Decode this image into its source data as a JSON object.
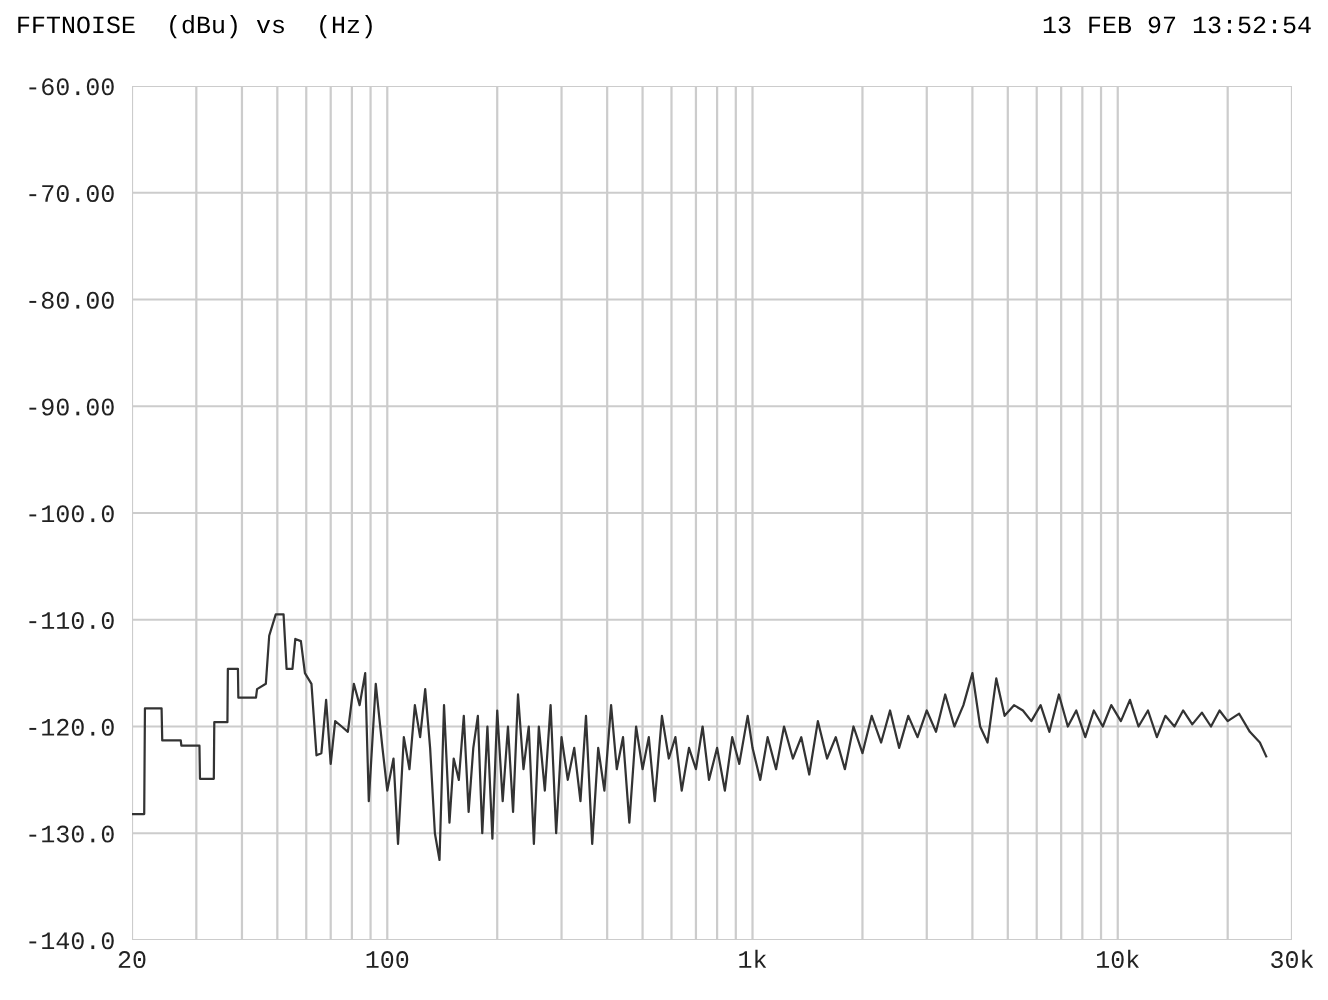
{
  "chart_data": {
    "type": "line",
    "title": "FFTNOISE  (dBu) vs  (Hz)",
    "annotations": [
      "13 FEB 97 13:52:54"
    ],
    "log": "x",
    "grid": true,
    "marker": "none",
    "line_style": "solid",
    "legend": false,
    "xlim": [
      20,
      30000
    ],
    "ylim": [
      -140,
      -60
    ],
    "xticks": [
      20,
      {
        "value": 30,
        "label": null
      },
      {
        "value": 40,
        "label": null
      },
      {
        "value": 50,
        "label": null
      },
      {
        "value": 60,
        "label": null
      },
      {
        "value": 70,
        "label": null
      },
      {
        "value": 80,
        "label": null
      },
      {
        "value": 90,
        "label": null
      },
      100,
      {
        "value": 200,
        "label": null
      },
      {
        "value": 300,
        "label": null
      },
      {
        "value": 400,
        "label": null
      },
      {
        "value": 500,
        "label": null
      },
      {
        "value": 600,
        "label": null
      },
      {
        "value": 700,
        "label": null
      },
      {
        "value": 800,
        "label": null
      },
      {
        "value": 900,
        "label": null
      },
      {
        "value": 1000,
        "label": "1k"
      },
      {
        "value": 2000,
        "label": null
      },
      {
        "value": 3000,
        "label": null
      },
      {
        "value": 4000,
        "label": null
      },
      {
        "value": 5000,
        "label": null
      },
      {
        "value": 6000,
        "label": null
      },
      {
        "value": 7000,
        "label": null
      },
      {
        "value": 8000,
        "label": null
      },
      {
        "value": 9000,
        "label": null
      },
      {
        "value": 10000,
        "label": "10k"
      },
      {
        "value": 20000,
        "label": null
      },
      {
        "value": 30000,
        "label": "30k"
      }
    ],
    "yticks": [
      {
        "value": -60,
        "label": "-60.00"
      },
      {
        "value": -70,
        "label": "-70.00"
      },
      {
        "value": -80,
        "label": "-80.00"
      },
      {
        "value": -90,
        "label": "-90.00"
      },
      {
        "value": -100,
        "label": "-100.0"
      },
      {
        "value": -110,
        "label": "-110.0"
      },
      {
        "value": -120,
        "label": "-120.0"
      },
      {
        "value": -130,
        "label": "-130.0"
      },
      {
        "value": -140,
        "label": "-140.0"
      }
    ],
    "series": [
      {
        "color": "#333333",
        "x": [
          20,
          21.6,
          21.7,
          24.1,
          24.2,
          27.2,
          27.3,
          30.6,
          30.7,
          33.5,
          33.6,
          36.5,
          36.6,
          39,
          39.1,
          43.7,
          44,
          46.5,
          47.5,
          49.5,
          52,
          53,
          55,
          56,
          58,
          59.5,
          62,
          64,
          66,
          68,
          70,
          72,
          75,
          78,
          81,
          84,
          87,
          89,
          93,
          97,
          100,
          104,
          107,
          111,
          115,
          119,
          123,
          127,
          131,
          135,
          139,
          143,
          148,
          152,
          157,
          162,
          167,
          172,
          177,
          182,
          188,
          194,
          200,
          207,
          214,
          221,
          228,
          236,
          244,
          252,
          260,
          270,
          280,
          290,
          300,
          312,
          325,
          338,
          350,
          364,
          378,
          393,
          410,
          425,
          442,
          460,
          480,
          500,
          520,
          540,
          565,
          590,
          615,
          640,
          670,
          700,
          730,
          760,
          800,
          840,
          880,
          920,
          970,
          1000,
          1050,
          1100,
          1160,
          1220,
          1290,
          1360,
          1430,
          1510,
          1600,
          1690,
          1790,
          1890,
          2000,
          2120,
          2250,
          2380,
          2520,
          2670,
          2830,
          3000,
          3180,
          3370,
          3570,
          3780,
          4000,
          4200,
          4400,
          4650,
          4900,
          5200,
          5500,
          5800,
          6150,
          6500,
          6900,
          7300,
          7700,
          8150,
          8600,
          9100,
          9600,
          10200,
          10800,
          11400,
          12100,
          12800,
          13500,
          14300,
          15100,
          16000,
          17000,
          18000,
          19000,
          20000,
          21500,
          23000,
          24500,
          25500
        ],
        "values": [
          -128.2,
          -128.2,
          -118.3,
          -118.3,
          -121.3,
          -121.3,
          -121.8,
          -121.8,
          -124.9,
          -124.9,
          -119.6,
          -119.6,
          -114.6,
          -114.6,
          -117.3,
          -117.3,
          -116.5,
          -116,
          -111.5,
          -109.5,
          -109.5,
          -114.6,
          -114.6,
          -111.8,
          -112,
          -115,
          -116,
          -122.7,
          -122.5,
          -117.5,
          -123.5,
          -119.5,
          -120,
          -120.5,
          -116,
          -118,
          -115,
          -127,
          -116,
          -122,
          -126,
          -123,
          -131,
          -121,
          -124,
          -118,
          -121,
          -116.5,
          -122,
          -130,
          -132.5,
          -118,
          -129,
          -123,
          -125,
          -119,
          -128,
          -122,
          -119,
          -130,
          -120,
          -130.5,
          -118.5,
          -127,
          -120,
          -128,
          -117,
          -124,
          -120,
          -131,
          -120,
          -126,
          -118,
          -130,
          -121,
          -125,
          -122,
          -127,
          -119,
          -131,
          -122,
          -126,
          -118,
          -124,
          -121,
          -129,
          -120,
          -124,
          -121,
          -127,
          -119,
          -123,
          -121,
          -126,
          -122,
          -124,
          -120,
          -125,
          -122,
          -126,
          -121,
          -123.5,
          -119,
          -122,
          -125,
          -121,
          -124,
          -120,
          -123,
          -121,
          -124.5,
          -119.5,
          -123,
          -121,
          -124,
          -120,
          -122.5,
          -119,
          -121.5,
          -118.5,
          -122,
          -119,
          -121,
          -118.5,
          -120.5,
          -117,
          -120,
          -118,
          -115,
          -120,
          -121.5,
          -115.5,
          -119,
          -118,
          -118.5,
          -119.5,
          -118,
          -120.5,
          -117,
          -120,
          -118.5,
          -121,
          -118.5,
          -120,
          -118,
          -119.5,
          -117.5,
          -120,
          -118.5,
          -121,
          -119,
          -120,
          -118.5,
          -119.8,
          -118.7,
          -120,
          -118.5,
          -119.5,
          -118.8,
          -120.5,
          -121.5,
          -122.8
        ]
      }
    ]
  }
}
